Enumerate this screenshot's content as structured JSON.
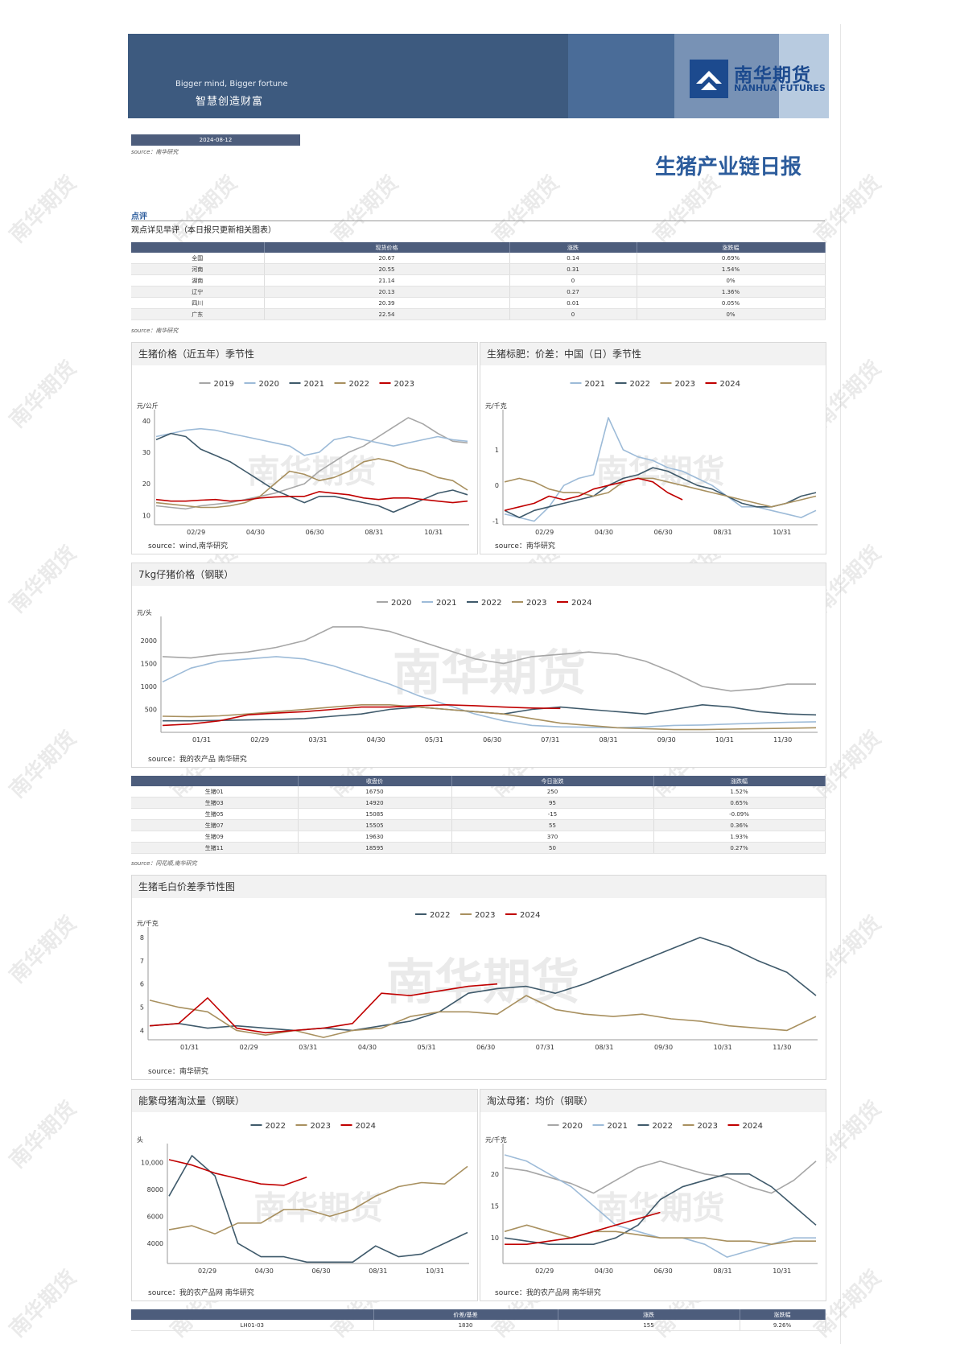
{
  "header": {
    "slogan_en": "Bigger mind, Bigger fortune",
    "slogan_cn": "智慧创造财富",
    "logo_cn": "南华期货",
    "logo_en": "NANHUA FUTURES",
    "date": "2024-08-12",
    "source": "source：南华研究",
    "title": "生猪产业链日报"
  },
  "comment": {
    "label": "点评",
    "text": "观点详见早评（本日报只更新相关图表）"
  },
  "spot_table": {
    "headers": [
      "",
      "现货价格",
      "涨跌",
      "涨跌幅"
    ],
    "rows": [
      [
        "全国",
        "20.67",
        "0.14",
        "0.69%"
      ],
      [
        "河南",
        "20.55",
        "0.31",
        "1.54%"
      ],
      [
        "湖南",
        "21.14",
        "0",
        "0%"
      ],
      [
        "辽宁",
        "20.13",
        "0.27",
        "1.36%"
      ],
      [
        "四川",
        "20.39",
        "0.01",
        "0.05%"
      ],
      [
        "广东",
        "22.54",
        "0",
        "0%"
      ]
    ],
    "source": "source：南华研究"
  },
  "futures_table": {
    "headers": [
      "",
      "收盘价",
      "今日涨跌",
      "涨跌幅"
    ],
    "rows": [
      [
        "生猪01",
        "16750",
        "250",
        "1.52%"
      ],
      [
        "生猪03",
        "14920",
        "95",
        "0.65%"
      ],
      [
        "生猪05",
        "15085",
        "-15",
        "-0.09%"
      ],
      [
        "生猪07",
        "15505",
        "55",
        "0.36%"
      ],
      [
        "生猪09",
        "19630",
        "370",
        "1.93%"
      ],
      [
        "生猪11",
        "18595",
        "50",
        "0.27%"
      ]
    ],
    "source": "source：同花顺,南华研究"
  },
  "basis_table": {
    "headers": [
      "",
      "价差/基差",
      "涨跌",
      "涨跌幅"
    ],
    "rows": [
      [
        "LH01-03",
        "1830",
        "155",
        "9.26%"
      ]
    ]
  },
  "colors": {
    "s2019": "#a6a6a6",
    "s2020": "#9dbbd8",
    "s2021": "#3f5a6b",
    "s2022": "#a8905f",
    "s2023": "#c00000"
  },
  "watermark": "南华期货",
  "chart_data": [
    {
      "id": "c1",
      "type": "line",
      "title": "生猪价格（近五年）季节性",
      "ylabel": "元/公斤",
      "yticks": [
        10,
        20,
        30,
        40
      ],
      "ylim": [
        7,
        41
      ],
      "xticks": [
        "02/29",
        "04/30",
        "06/30",
        "08/31",
        "10/31"
      ],
      "source": "source：wind,南华研究",
      "series": [
        {
          "name": "2019",
          "color": "#a6a6a6",
          "values": [
            13,
            12.5,
            12,
            13,
            13.5,
            14,
            15,
            16,
            17,
            18.5,
            20,
            24,
            27,
            30,
            32,
            35,
            38,
            41,
            39,
            36,
            33.5,
            33
          ]
        },
        {
          "name": "2020",
          "color": "#9dbbd8",
          "values": [
            35,
            36,
            37,
            37.5,
            37,
            36,
            35,
            34,
            33,
            32,
            29,
            30,
            34,
            35,
            34,
            33,
            32,
            33,
            34,
            35,
            34,
            33.5
          ]
        },
        {
          "name": "2021",
          "color": "#3f5a6b",
          "values": [
            34,
            36,
            35,
            31,
            29,
            27,
            24,
            21,
            18,
            16,
            14,
            16,
            16,
            15,
            14,
            13,
            11,
            13,
            15,
            17,
            18,
            16.5
          ]
        },
        {
          "name": "2022",
          "color": "#a8905f",
          "values": [
            14,
            13.5,
            13,
            12.5,
            12.5,
            13,
            14,
            16,
            20,
            24,
            23,
            21,
            22,
            24,
            27,
            28,
            27,
            25,
            24,
            22,
            21,
            18
          ]
        },
        {
          "name": "2023",
          "color": "#c00000",
          "values": [
            15,
            14.5,
            14.5,
            14.8,
            15,
            14.5,
            14.8,
            15.5,
            15.8,
            16,
            16,
            17.5,
            17,
            16.5,
            15.5,
            15,
            15.5,
            15.5,
            15,
            14.5,
            14,
            14.5
          ]
        }
      ]
    },
    {
      "id": "c2",
      "type": "line",
      "title": "生猪标肥：价差：中国（日）季节性",
      "ylabel": "元/千克",
      "yticks": [
        -1,
        0,
        1
      ],
      "ylim": [
        -1.1,
        1.9
      ],
      "xticks": [
        "02/29",
        "04/30",
        "06/30",
        "08/31",
        "10/31"
      ],
      "source": "source：南华研究",
      "series": [
        {
          "name": "2021",
          "color": "#9dbbd8",
          "values": [
            -0.8,
            -0.9,
            -1,
            -0.6,
            0,
            0.2,
            0.3,
            1.9,
            1,
            0.8,
            0.7,
            0.5,
            0.4,
            0.2,
            0,
            -0.3,
            -0.6,
            -0.6,
            -0.7,
            -0.8,
            -0.9,
            -0.7
          ]
        },
        {
          "name": "2022",
          "color": "#3f5a6b",
          "values": [
            -0.7,
            -0.9,
            -0.7,
            -0.6,
            -0.5,
            -0.4,
            -0.3,
            0,
            0.2,
            0.3,
            0.5,
            0.4,
            0.2,
            0,
            -0.1,
            -0.3,
            -0.5,
            -0.6,
            -0.6,
            -0.5,
            -0.3,
            -0.2
          ]
        },
        {
          "name": "2023",
          "color": "#a8905f",
          "values": [
            0.1,
            0.2,
            0.1,
            -0.1,
            -0.2,
            -0.2,
            -0.3,
            -0.2,
            0.1,
            0.2,
            0.2,
            0.1,
            0,
            -0.1,
            -0.2,
            -0.3,
            -0.4,
            -0.5,
            -0.6,
            -0.5,
            -0.4,
            -0.3
          ]
        },
        {
          "name": "2024",
          "color": "#c00000",
          "values": [
            -0.7,
            -0.6,
            -0.5,
            -0.3,
            -0.4,
            -0.3,
            -0.1,
            0,
            0.1,
            0.2,
            0.1,
            -0.2,
            -0.4
          ]
        }
      ]
    },
    {
      "id": "c3",
      "type": "line",
      "title": "7kg仔猪价格（钢联）",
      "ylabel": "元/头",
      "yticks": [
        500,
        1000,
        1500,
        2000
      ],
      "ylim": [
        0,
        2350
      ],
      "xticks": [
        "01/31",
        "02/29",
        "03/31",
        "04/30",
        "05/31",
        "06/30",
        "07/31",
        "08/31",
        "09/30",
        "10/31",
        "11/30"
      ],
      "source": "source：我的农产品 南华研究",
      "series": [
        {
          "name": "2020",
          "color": "#a6a6a6",
          "values": [
            1650,
            1620,
            1700,
            1750,
            1850,
            2000,
            2300,
            2300,
            2200,
            2000,
            1800,
            1600,
            1500,
            1650,
            1700,
            1750,
            1700,
            1550,
            1300,
            1000,
            900,
            950,
            1050,
            1050
          ]
        },
        {
          "name": "2021",
          "color": "#9dbbd8",
          "values": [
            1100,
            1400,
            1550,
            1600,
            1650,
            1600,
            1450,
            1250,
            1050,
            800,
            600,
            400,
            250,
            150,
            120,
            110,
            100,
            120,
            150,
            160,
            180,
            200,
            220,
            230
          ]
        },
        {
          "name": "2022",
          "color": "#3f5a6b",
          "values": [
            250,
            250,
            260,
            270,
            280,
            300,
            350,
            400,
            500,
            550,
            500,
            450,
            400,
            500,
            550,
            500,
            450,
            400,
            500,
            600,
            550,
            450,
            400,
            380
          ]
        },
        {
          "name": "2023",
          "color": "#a8905f",
          "values": [
            350,
            340,
            360,
            400,
            450,
            500,
            550,
            600,
            600,
            550,
            500,
            450,
            400,
            300,
            200,
            150,
            100,
            80,
            60,
            60,
            70,
            80,
            90,
            100
          ]
        },
        {
          "name": "2024",
          "color": "#c00000",
          "values": [
            150,
            180,
            250,
            380,
            420,
            450,
            500,
            550,
            550,
            580,
            600,
            580,
            550,
            530,
            520
          ]
        }
      ]
    },
    {
      "id": "c4",
      "type": "line",
      "title": "生猪毛白价差季节性图",
      "ylabel": "元/千克",
      "yticks": [
        4,
        5,
        6,
        7,
        8
      ],
      "ylim": [
        3.6,
        8.1
      ],
      "xticks": [
        "01/31",
        "02/29",
        "03/31",
        "04/30",
        "05/31",
        "06/30",
        "07/31",
        "08/31",
        "09/30",
        "10/31",
        "11/30"
      ],
      "source": "source：南华研究",
      "series": [
        {
          "name": "2022",
          "color": "#3f5a6b",
          "values": [
            4.2,
            4.3,
            4.1,
            4.2,
            4.1,
            4,
            4.1,
            4,
            4.2,
            4.4,
            4.8,
            5.6,
            5.8,
            5.9,
            5.6,
            6,
            6.5,
            7,
            7.5,
            8,
            7.6,
            7,
            6.5,
            5.5
          ]
        },
        {
          "name": "2023",
          "color": "#a8905f",
          "values": [
            5.3,
            5,
            4.8,
            4,
            3.8,
            4,
            3.7,
            4,
            4.1,
            4.6,
            4.8,
            4.8,
            4.7,
            5.5,
            4.9,
            4.7,
            4.6,
            4.7,
            4.5,
            4.4,
            4.2,
            4.1,
            4,
            4.6
          ]
        },
        {
          "name": "2024",
          "color": "#c00000",
          "values": [
            4.2,
            4.3,
            5.4,
            4.1,
            3.9,
            4,
            4.1,
            4.3,
            5.6,
            5.5,
            5.7,
            5.9,
            6
          ]
        }
      ]
    },
    {
      "id": "c5",
      "type": "line",
      "title": "能繁母猪淘汰量（钢联）",
      "ylabel": "头",
      "yticks": [
        4000,
        6000,
        8000,
        10000
      ],
      "ytick_labels": [
        "4000",
        "6000",
        "8000",
        "10,000"
      ],
      "ylim": [
        2500,
        10800
      ],
      "xticks": [
        "02/29",
        "04/30",
        "06/30",
        "08/31",
        "10/31"
      ],
      "source": "source：我的农产品网 南华研究",
      "series": [
        {
          "name": "2022",
          "color": "#3f5a6b",
          "values": [
            7500,
            10500,
            9000,
            4000,
            3000,
            3000,
            2600,
            2600,
            2600,
            3800,
            3000,
            3200,
            4000,
            4800
          ]
        },
        {
          "name": "2023",
          "color": "#a8905f",
          "values": [
            5000,
            5300,
            4700,
            5500,
            5500,
            6500,
            6500,
            6000,
            6500,
            7500,
            8200,
            8500,
            8400,
            9700
          ]
        },
        {
          "name": "2024",
          "color": "#c00000",
          "values": [
            10200,
            9800,
            9200,
            8800,
            8400,
            8300,
            8900
          ]
        }
      ]
    },
    {
      "id": "c6",
      "type": "line",
      "title": "淘汰母猪：均价（钢联）",
      "ylabel": "元/千克",
      "yticks": [
        10,
        15,
        20
      ],
      "ylim": [
        6,
        23.5
      ],
      "xticks": [
        "02/29",
        "04/30",
        "06/30",
        "08/31",
        "10/31"
      ],
      "source": "source：我的农产品网 南华研究",
      "series": [
        {
          "name": "2020",
          "color": "#a6a6a6",
          "values": [
            21,
            20.5,
            19.5,
            18.5,
            17,
            19,
            21,
            22,
            21,
            20,
            19.5,
            18,
            17,
            19,
            22
          ]
        },
        {
          "name": "2021",
          "color": "#9dbbd8",
          "values": [
            23,
            22,
            20,
            18,
            15,
            12,
            11,
            10,
            10,
            9,
            7,
            8,
            9,
            10,
            10
          ]
        },
        {
          "name": "2022",
          "color": "#3f5a6b",
          "values": [
            10,
            9.5,
            9,
            9,
            9,
            10,
            12,
            16,
            18,
            19,
            20,
            20,
            18,
            15,
            12
          ]
        },
        {
          "name": "2023",
          "color": "#a8905f",
          "values": [
            11,
            12,
            11,
            10,
            11,
            11,
            10.5,
            10,
            10,
            10,
            9.5,
            9.5,
            9,
            9.5,
            9.5
          ]
        },
        {
          "name": "2024",
          "color": "#c00000",
          "values": [
            9,
            9,
            9.5,
            10,
            11,
            12,
            13,
            14
          ]
        }
      ]
    }
  ]
}
